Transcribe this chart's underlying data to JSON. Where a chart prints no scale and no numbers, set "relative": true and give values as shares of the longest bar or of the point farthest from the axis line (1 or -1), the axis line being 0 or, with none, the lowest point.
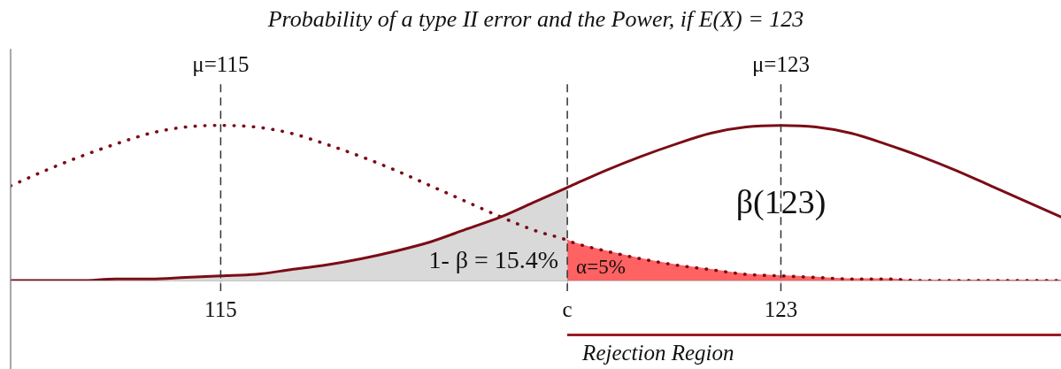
{
  "chart_data": {
    "type": "line",
    "title": "Probability of a type II error and the Power, if E(X) = 123",
    "relative": true,
    "legend": false,
    "grid": false,
    "marker": "none",
    "tick_labels": "x",
    "xlim": [
      112,
      127
    ],
    "xticks": [
      115,
      {
        "value": 119.95,
        "label": "c"
      },
      123
    ],
    "x": [
      112,
      112.5,
      113,
      113.5,
      114,
      114.5,
      115,
      115.5,
      116,
      116.5,
      117,
      117.5,
      118,
      118.5,
      119,
      119.5,
      119.95,
      120,
      120.5,
      121,
      121.5,
      122,
      122.5,
      123,
      123.5,
      124,
      124.5,
      125,
      125.5,
      126,
      126.5,
      127
    ],
    "series": [
      {
        "type": "area",
        "color": "#d9d9d9",
        "x": [
          112,
          112.5,
          113,
          113.5,
          114,
          114.5,
          115,
          115.5,
          116,
          116.5,
          117,
          117.5,
          118,
          118.5,
          119,
          119.5,
          119.95
        ],
        "values": [
          0.0,
          0.0,
          0.0,
          0.01,
          0.01,
          0.02,
          0.03,
          0.04,
          0.07,
          0.1,
          0.14,
          0.19,
          0.25,
          0.33,
          0.41,
          0.51,
          0.6
        ]
      },
      {
        "type": "area",
        "color": "#ff6262",
        "x": [
          119.95,
          120,
          120.5,
          121,
          121.5,
          122,
          122.5,
          123,
          123.5,
          124,
          124.5,
          125,
          125.5,
          126,
          126.5,
          127
        ],
        "values": [
          0.26,
          0.25,
          0.19,
          0.14,
          0.1,
          0.07,
          0.04,
          0.03,
          0.02,
          0.01,
          0.01,
          0,
          0,
          0,
          0,
          0
        ]
      },
      {
        "color": "#7b0c16",
        "line_style": "solid",
        "values": [
          0.0,
          0.0,
          0.0,
          0.01,
          0.01,
          0.02,
          0.03,
          0.04,
          0.07,
          0.1,
          0.14,
          0.19,
          0.25,
          0.33,
          0.41,
          0.51,
          0.6,
          0.61,
          0.71,
          0.8,
          0.88,
          0.95,
          0.99,
          1,
          0.99,
          0.95,
          0.88,
          0.8,
          0.71,
          0.61,
          0.51,
          0.41
        ]
      },
      {
        "color": "#7b0c16",
        "line_style": "dotted",
        "values": [
          0.61,
          0.71,
          0.8,
          0.88,
          0.95,
          0.99,
          1,
          0.99,
          0.95,
          0.88,
          0.8,
          0.71,
          0.61,
          0.51,
          0.41,
          0.32,
          0.26,
          0.25,
          0.19,
          0.14,
          0.1,
          0.07,
          0.04,
          0.03,
          0.02,
          0.01,
          0.01,
          0,
          0,
          0,
          0,
          0
        ]
      }
    ],
    "ref_lines": [
      {
        "axis": "x",
        "value": 115,
        "label": "μ=115",
        "line_style": "dashed",
        "color": "#333333"
      },
      {
        "axis": "x",
        "value": 123,
        "label": "μ=123",
        "line_style": "dashed",
        "color": "#333333"
      },
      {
        "axis": "x",
        "value": 119.95,
        "label": null,
        "line_style": "dashed",
        "color": "#333333"
      }
    ],
    "annotations": [
      {
        "text": "β(123)",
        "x": 123,
        "y": 0.49
      },
      "1- β = 15.4%",
      "α=5%",
      "Rejection Region"
    ]
  }
}
